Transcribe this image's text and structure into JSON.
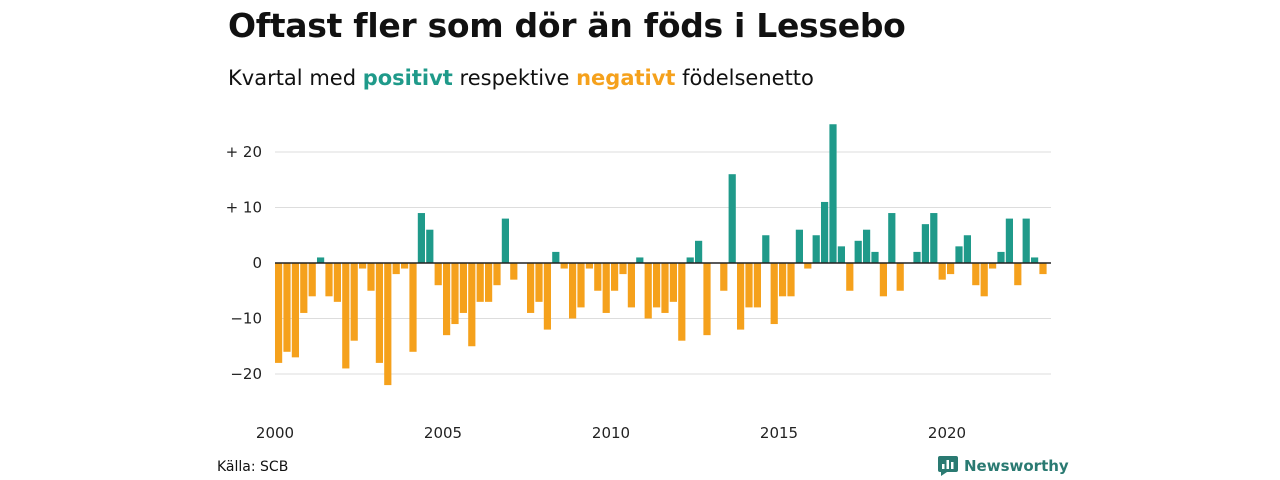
{
  "title": "Oftast fler som dör än föds i Lessebo",
  "subtitle": {
    "prefix": "Kvartal med",
    "positive_word": "positivt",
    "middle": "respektive",
    "negative_word": "negativt",
    "suffix": "födelsenetto"
  },
  "colors": {
    "positive": "#1f9a8a",
    "negative": "#f5a11c",
    "grid": "#dddddd",
    "zero_line": "#222222",
    "brand": "#2a7a72"
  },
  "source": "Källa: SCB",
  "brand": {
    "name": "Newsworthy",
    "icon": "newsworthy-chart-logo-icon"
  },
  "chart_data": {
    "type": "bar",
    "x_start": "2000 Q1",
    "period": "quarter",
    "ylim": [
      -25,
      25
    ],
    "grid": true,
    "y_ticks": [
      {
        "value": 20,
        "label": "+ 20"
      },
      {
        "value": 10,
        "label": "+ 10"
      },
      {
        "value": 0,
        "label": "0"
      },
      {
        "value": -10,
        "label": "−10"
      },
      {
        "value": -20,
        "label": "−20"
      }
    ],
    "x_ticks": [
      {
        "year": 2000,
        "label": "2000"
      },
      {
        "year": 2005,
        "label": "2005"
      },
      {
        "year": 2010,
        "label": "2010"
      },
      {
        "year": 2015,
        "label": "2015"
      },
      {
        "year": 2020,
        "label": "2020"
      }
    ],
    "values": [
      -18,
      -16,
      -17,
      -9,
      -6,
      1,
      -6,
      -7,
      -19,
      -14,
      -1,
      -5,
      -18,
      -22,
      -2,
      -1,
      -16,
      9,
      6,
      -4,
      -13,
      -11,
      -9,
      -15,
      -7,
      -7,
      -4,
      8,
      -3,
      0,
      -9,
      -7,
      -12,
      2,
      -1,
      -10,
      -8,
      -1,
      -5,
      -9,
      -5,
      -2,
      -8,
      1,
      -10,
      -8,
      -9,
      -7,
      -14,
      1,
      4,
      -13,
      0,
      -5,
      16,
      -12,
      -8,
      -8,
      5,
      -11,
      -6,
      -6,
      6,
      -1,
      5,
      11,
      25,
      3,
      -5,
      4,
      6,
      2,
      -6,
      9,
      -5,
      0,
      2,
      7,
      9,
      -3,
      -2,
      3,
      5,
      -4,
      -6,
      -1,
      2,
      8,
      -4,
      8,
      1,
      -2
    ]
  }
}
